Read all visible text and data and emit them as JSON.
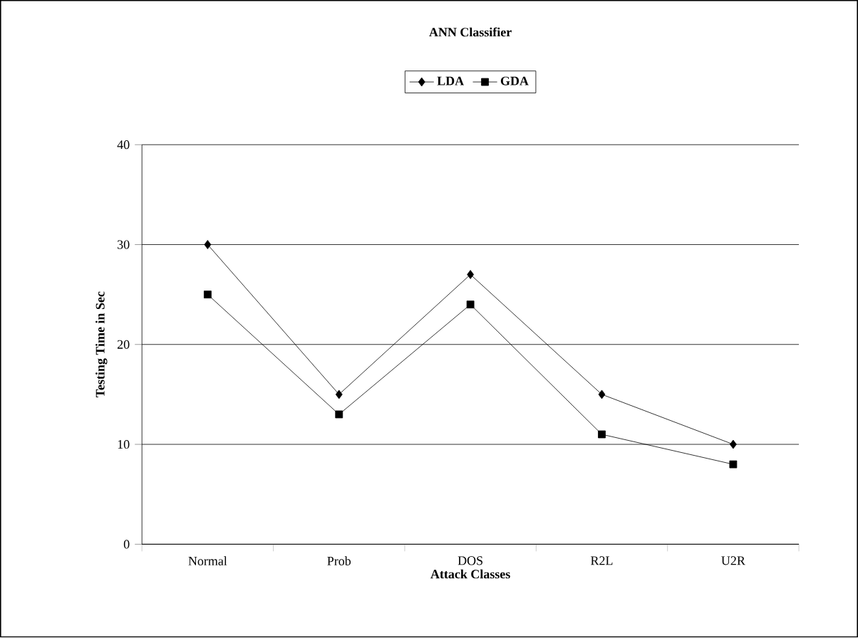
{
  "chart_data": {
    "type": "line",
    "title": "ANN Classifier",
    "xlabel": "Attack Classes",
    "ylabel": "Testing Time in Sec",
    "categories": [
      "Normal",
      "Prob",
      "DOS",
      "R2L",
      "U2R"
    ],
    "series": [
      {
        "name": "LDA",
        "color": "#000000",
        "marker": "diamond",
        "values": [
          30,
          15,
          27,
          15,
          10
        ]
      },
      {
        "name": "GDA",
        "color": "#000000",
        "marker": "square",
        "values": [
          25,
          13,
          24,
          11,
          8
        ]
      }
    ],
    "ylim": [
      0,
      40
    ],
    "yticks": [
      0,
      10,
      20,
      30,
      40
    ],
    "grid": "y",
    "legend": "top",
    "line_style": "solid"
  }
}
